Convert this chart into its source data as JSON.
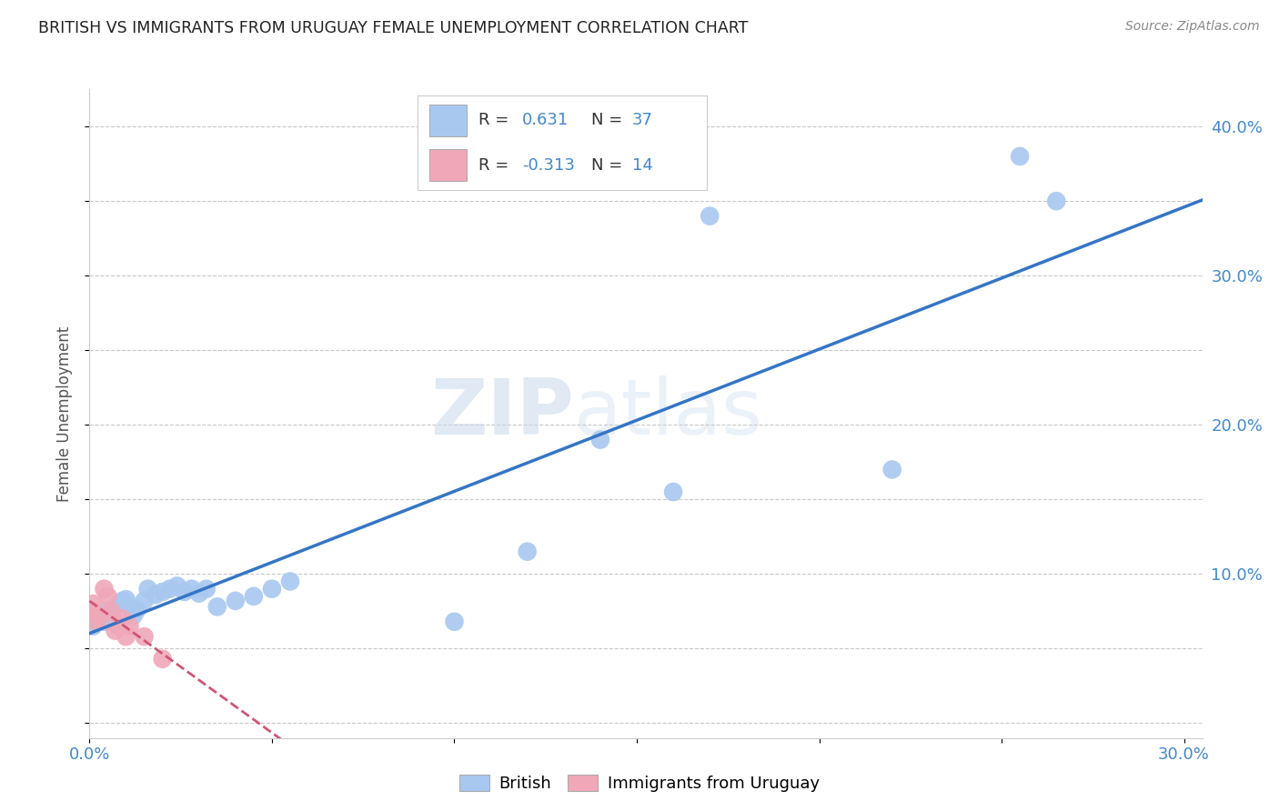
{
  "title": "BRITISH VS IMMIGRANTS FROM URUGUAY FEMALE UNEMPLOYMENT CORRELATION CHART",
  "source": "Source: ZipAtlas.com",
  "ylabel": "Female Unemployment",
  "xlim": [
    0.0,
    0.305
  ],
  "ylim": [
    -0.01,
    0.425
  ],
  "british_R": 0.631,
  "british_N": 37,
  "uruguay_R": -0.313,
  "uruguay_N": 14,
  "british_color": "#a8c8f0",
  "british_line_color": "#3575c5",
  "uruguay_color": "#f0a8b8",
  "uruguay_line_color": "#d05575",
  "legend_label_british": "British",
  "legend_label_uruguay": "Immigrants from Uruguay",
  "british_x": [
    0.001,
    0.001,
    0.002,
    0.003,
    0.004,
    0.005,
    0.006,
    0.007,
    0.008,
    0.009,
    0.01,
    0.011,
    0.012,
    0.013,
    0.015,
    0.016,
    0.018,
    0.02,
    0.022,
    0.024,
    0.026,
    0.028,
    0.03,
    0.032,
    0.035,
    0.04,
    0.045,
    0.05,
    0.055,
    0.1,
    0.12,
    0.14,
    0.16,
    0.17,
    0.22,
    0.255,
    0.265
  ],
  "british_y": [
    0.065,
    0.07,
    0.068,
    0.072,
    0.068,
    0.075,
    0.072,
    0.068,
    0.08,
    0.082,
    0.083,
    0.078,
    0.072,
    0.076,
    0.082,
    0.09,
    0.086,
    0.088,
    0.09,
    0.092,
    0.088,
    0.09,
    0.087,
    0.09,
    0.078,
    0.082,
    0.085,
    0.09,
    0.095,
    0.068,
    0.115,
    0.19,
    0.155,
    0.34,
    0.17,
    0.38,
    0.35
  ],
  "uruguay_x": [
    0.001,
    0.001,
    0.002,
    0.003,
    0.004,
    0.005,
    0.006,
    0.007,
    0.008,
    0.009,
    0.01,
    0.011,
    0.015,
    0.02
  ],
  "uruguay_y": [
    0.075,
    0.08,
    0.068,
    0.072,
    0.09,
    0.085,
    0.075,
    0.062,
    0.065,
    0.07,
    0.058,
    0.065,
    0.058,
    0.043
  ],
  "watermark_zip": "ZIP",
  "watermark_atlas": "atlas",
  "background_color": "#ffffff",
  "grid_color": "#c8c8c8",
  "x_ticks": [
    0.0,
    0.05,
    0.1,
    0.15,
    0.2,
    0.25,
    0.3
  ],
  "y_ticks": [
    0.0,
    0.05,
    0.1,
    0.15,
    0.2,
    0.25,
    0.3,
    0.35,
    0.4
  ],
  "right_y_labels": [
    "",
    "",
    "10.0%",
    "",
    "20.0%",
    "",
    "30.0%",
    "",
    "40.0%"
  ]
}
